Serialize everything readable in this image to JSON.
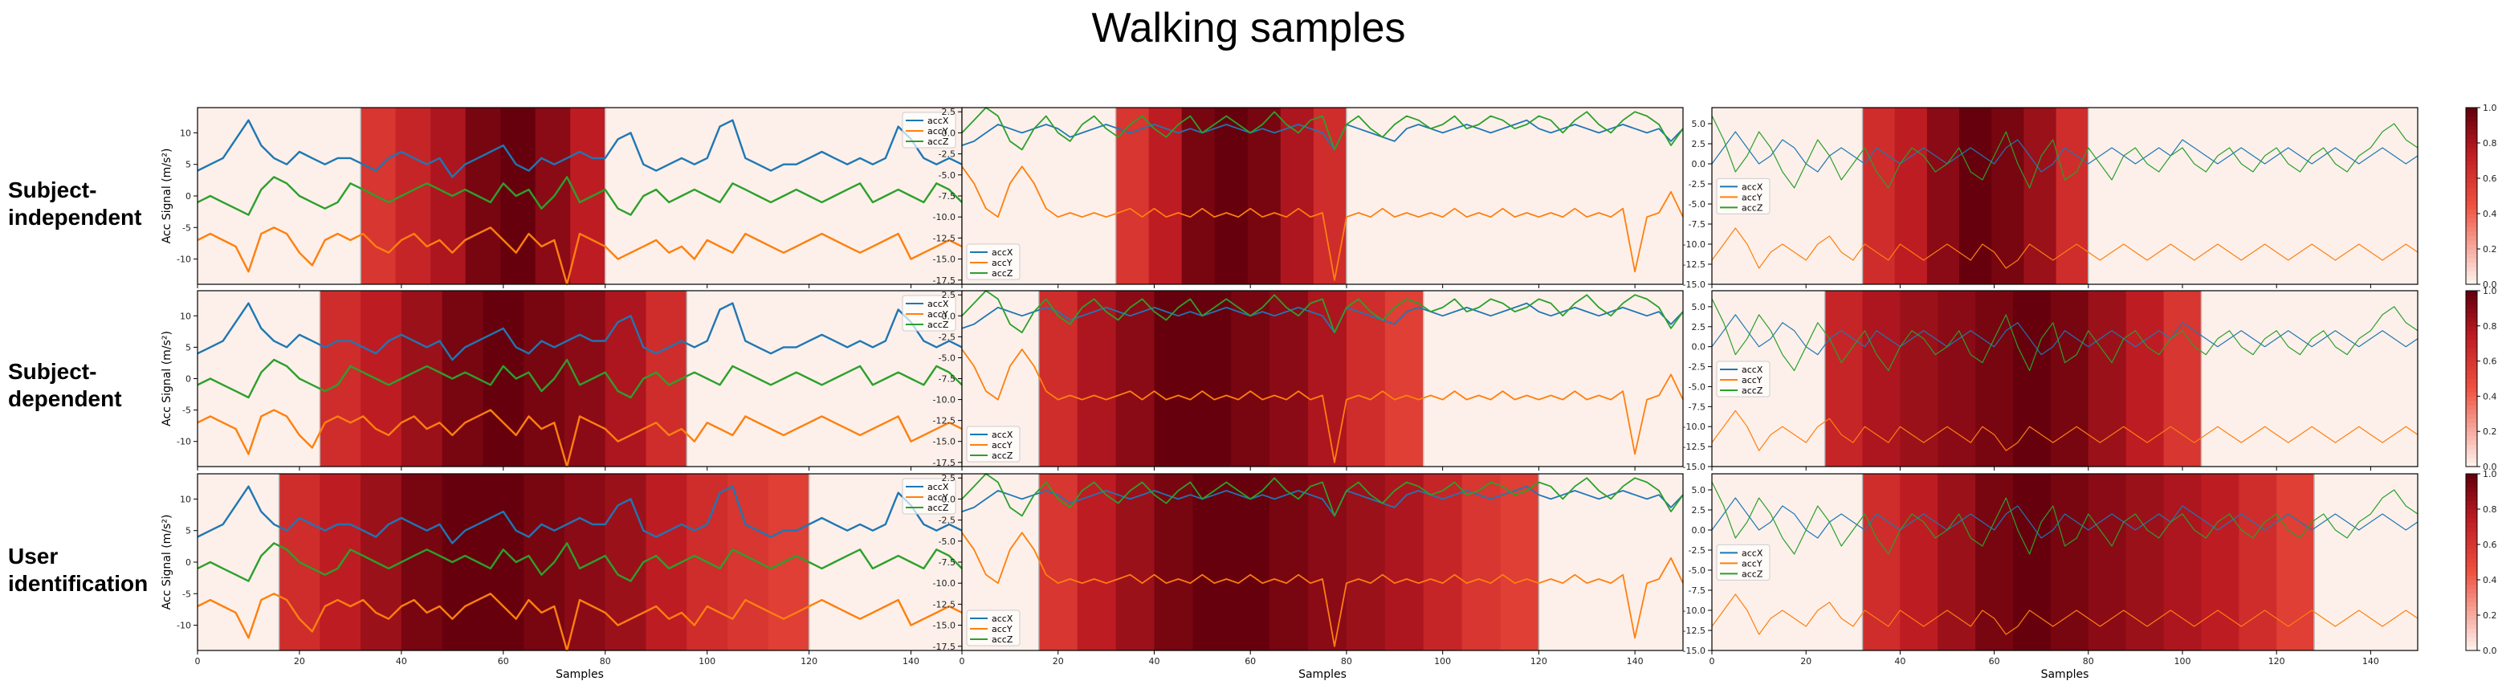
{
  "figure": {
    "title": "Walking samples",
    "row_labels": [
      [
        "Subject-",
        "independent"
      ],
      [
        "Subject-",
        "dependent"
      ],
      [
        "User",
        "identification"
      ]
    ],
    "xlabel": "Samples",
    "ylabel": "Acc Signal (m/s²)",
    "colormap": "Reds",
    "colorbar_ticks": [
      "0.0",
      "0.2",
      "0.4",
      "0.6",
      "0.8",
      "1.0"
    ],
    "series_colors": {
      "accX": "#1f77b4",
      "accY": "#ff7f0e",
      "accZ": "#2ca02c"
    }
  },
  "chart_data": [
    {
      "type": "line",
      "row": 0,
      "col": 0,
      "series": [
        "accX",
        "accY",
        "accZ"
      ],
      "xlim": [
        0,
        150
      ],
      "ylim": [
        -14,
        14
      ],
      "yticks": [
        -10,
        -5,
        0,
        5,
        10
      ],
      "xticks": [
        0,
        20,
        40,
        60,
        80,
        100,
        120,
        140
      ],
      "highlight_x": [
        32,
        80
      ],
      "highlight_weights": [
        0.6,
        0.7,
        0.8,
        0.95,
        1.0,
        0.9,
        0.75
      ],
      "legend_loc": "top-right"
    },
    {
      "type": "line",
      "row": 0,
      "col": 1,
      "series": [
        "accX",
        "accY",
        "accZ"
      ],
      "xlim": [
        0,
        150
      ],
      "ylim": [
        -18,
        3
      ],
      "yticks": [
        -17.5,
        -15.0,
        -12.5,
        -10.0,
        -7.5,
        -5.0,
        -2.5,
        0.0,
        2.5
      ],
      "xticks": [
        0,
        20,
        40,
        60,
        80,
        100,
        120,
        140
      ],
      "highlight_x": [
        32,
        80
      ],
      "highlight_weights": [
        0.6,
        0.75,
        0.95,
        1.0,
        0.95,
        0.8,
        0.65
      ],
      "legend_loc": "bottom-left"
    },
    {
      "type": "line",
      "row": 0,
      "col": 2,
      "series": [
        "accX",
        "accY",
        "accZ"
      ],
      "xlim": [
        0,
        150
      ],
      "ylim": [
        -15,
        7
      ],
      "yticks": [
        -15.0,
        -12.5,
        -10.0,
        -7.5,
        -5.0,
        -2.5,
        0.0,
        2.5,
        5.0
      ],
      "xticks": [
        0,
        20,
        40,
        60,
        80,
        100,
        120,
        140
      ],
      "highlight_x": [
        32,
        80
      ],
      "highlight_weights": [
        0.65,
        0.75,
        0.9,
        1.0,
        0.95,
        0.85,
        0.65
      ],
      "legend_loc": "center-left"
    },
    {
      "type": "line",
      "row": 1,
      "col": 0,
      "series": [
        "accX",
        "accY",
        "accZ"
      ],
      "xlim": [
        0,
        150
      ],
      "ylim": [
        -14,
        14
      ],
      "yticks": [
        -10,
        -5,
        0,
        5,
        10
      ],
      "xticks": [
        0,
        20,
        40,
        60,
        80,
        100,
        120,
        140
      ],
      "highlight_x": [
        24,
        96
      ],
      "highlight_weights": [
        0.65,
        0.75,
        0.85,
        0.95,
        1.0,
        0.95,
        0.9,
        0.8,
        0.65
      ],
      "legend_loc": "top-right"
    },
    {
      "type": "line",
      "row": 1,
      "col": 1,
      "series": [
        "accX",
        "accY",
        "accZ"
      ],
      "xlim": [
        0,
        150
      ],
      "ylim": [
        -18,
        3
      ],
      "yticks": [
        -17.5,
        -15.0,
        -12.5,
        -10.0,
        -7.5,
        -5.0,
        -2.5,
        0.0,
        2.5
      ],
      "xticks": [
        0,
        20,
        40,
        60,
        80,
        100,
        120,
        140
      ],
      "highlight_x": [
        16,
        96
      ],
      "highlight_weights": [
        0.65,
        0.8,
        0.9,
        1.0,
        1.0,
        0.95,
        0.9,
        0.8,
        0.65,
        0.55
      ],
      "legend_loc": "bottom-left"
    },
    {
      "type": "line",
      "row": 1,
      "col": 2,
      "series": [
        "accX",
        "accY",
        "accZ"
      ],
      "xlim": [
        0,
        150
      ],
      "ylim": [
        -15,
        7
      ],
      "yticks": [
        -15.0,
        -12.5,
        -10.0,
        -7.5,
        -5.0,
        -2.5,
        0.0,
        2.5,
        5.0
      ],
      "xticks": [
        0,
        20,
        40,
        60,
        80,
        100,
        120,
        140
      ],
      "highlight_x": [
        24,
        104
      ],
      "highlight_weights": [
        0.7,
        0.8,
        0.85,
        0.9,
        0.95,
        1.0,
        0.95,
        0.85,
        0.75,
        0.6
      ],
      "legend_loc": "center-left"
    },
    {
      "type": "line",
      "row": 2,
      "col": 0,
      "series": [
        "accX",
        "accY",
        "accZ"
      ],
      "xlim": [
        0,
        150
      ],
      "ylim": [
        -14,
        14
      ],
      "yticks": [
        -10,
        -5,
        0,
        5,
        10
      ],
      "xticks": [
        0,
        20,
        40,
        60,
        80,
        100,
        120,
        140
      ],
      "highlight_x": [
        16,
        120
      ],
      "highlight_weights": [
        0.65,
        0.75,
        0.85,
        0.95,
        1.0,
        1.0,
        0.95,
        0.9,
        0.85,
        0.75,
        0.65,
        0.6,
        0.55
      ],
      "legend_loc": "top-right"
    },
    {
      "type": "line",
      "row": 2,
      "col": 1,
      "series": [
        "accX",
        "accY",
        "accZ"
      ],
      "xlim": [
        0,
        150
      ],
      "ylim": [
        -18,
        3
      ],
      "yticks": [
        -17.5,
        -15.0,
        -12.5,
        -10.0,
        -7.5,
        -5.0,
        -2.5,
        0.0,
        2.5
      ],
      "xticks": [
        0,
        20,
        40,
        60,
        80,
        100,
        120,
        140
      ],
      "highlight_x": [
        16,
        120
      ],
      "highlight_weights": [
        0.6,
        0.75,
        0.85,
        0.95,
        1.0,
        1.0,
        0.95,
        0.9,
        0.85,
        0.8,
        0.7,
        0.6,
        0.55
      ],
      "legend_loc": "bottom-left"
    },
    {
      "type": "line",
      "row": 2,
      "col": 2,
      "series": [
        "accX",
        "accY",
        "accZ"
      ],
      "xlim": [
        0,
        150
      ],
      "ylim": [
        -15,
        7
      ],
      "yticks": [
        -15.0,
        -12.5,
        -10.0,
        -7.5,
        -5.0,
        -2.5,
        0.0,
        2.5,
        5.0
      ],
      "xticks": [
        0,
        20,
        40,
        60,
        80,
        100,
        120,
        140
      ],
      "highlight_x": [
        32,
        128
      ],
      "highlight_weights": [
        0.65,
        0.75,
        0.85,
        0.95,
        1.0,
        0.95,
        0.9,
        0.85,
        0.8,
        0.75,
        0.65,
        0.55
      ],
      "legend_loc": "center-left"
    }
  ],
  "signals": {
    "left": {
      "accX": [
        4,
        5,
        6,
        9,
        12,
        8,
        6,
        5,
        7,
        6,
        5,
        6,
        6,
        5,
        4,
        6,
        7,
        6,
        5,
        6,
        3,
        5,
        6,
        7,
        8,
        5,
        4,
        6,
        5,
        6,
        7,
        6,
        6,
        9,
        10,
        5,
        4,
        5,
        6,
        5,
        6,
        11,
        12,
        6,
        5,
        4,
        5,
        5,
        6,
        7,
        6,
        5,
        6,
        5,
        6,
        11,
        9,
        6,
        5,
        6,
        5
      ],
      "accY": [
        -7,
        -6,
        -7,
        -8,
        -12,
        -6,
        -5,
        -6,
        -9,
        -11,
        -7,
        -6,
        -7,
        -6,
        -8,
        -9,
        -7,
        -6,
        -8,
        -7,
        -9,
        -7,
        -6,
        -5,
        -7,
        -9,
        -6,
        -8,
        -7,
        -14,
        -6,
        -7,
        -8,
        -10,
        -9,
        -8,
        -7,
        -9,
        -8,
        -10,
        -7,
        -8,
        -9,
        -6,
        -7,
        -8,
        -9,
        -8,
        -7,
        -6,
        -7,
        -8,
        -9,
        -8,
        -7,
        -6,
        -10,
        -9,
        -8,
        -7,
        -8
      ],
      "accZ": [
        -1,
        0,
        -1,
        -2,
        -3,
        1,
        3,
        2,
        0,
        -1,
        -2,
        -1,
        2,
        1,
        0,
        -1,
        0,
        1,
        2,
        1,
        0,
        1,
        0,
        -1,
        2,
        0,
        1,
        -2,
        0,
        3,
        -1,
        0,
        1,
        -2,
        -3,
        0,
        1,
        -1,
        0,
        1,
        0,
        -1,
        2,
        1,
        0,
        -1,
        0,
        1,
        0,
        -1,
        0,
        1,
        2,
        -1,
        0,
        1,
        0,
        -1,
        2,
        1,
        -1
      ]
    },
    "middle": {
      "accX": [
        -1.5,
        -1.0,
        0.0,
        1.0,
        0.5,
        0.0,
        0.5,
        1.0,
        0.5,
        -0.5,
        0.0,
        0.5,
        1.0,
        0.5,
        0.0,
        0.5,
        1.0,
        0.5,
        0.0,
        0.5,
        0.0,
        0.5,
        1.0,
        0.5,
        0.0,
        0.5,
        0.0,
        0.5,
        1.0,
        0.5,
        0.0,
        -2.0,
        1.0,
        0.5,
        0.0,
        -0.5,
        -1.0,
        0.5,
        1.0,
        0.5,
        0.0,
        0.5,
        1.0,
        0.5,
        0.0,
        0.5,
        1.0,
        1.5,
        0.5,
        0.0,
        0.5,
        1.0,
        0.5,
        0.0,
        0.5,
        1.0,
        0.5,
        0.0,
        0.5,
        -1.0,
        0.5
      ],
      "accY": [
        -4.0,
        -6.0,
        -9.0,
        -10.0,
        -6.0,
        -4.0,
        -6.0,
        -9.0,
        -10.0,
        -9.5,
        -10.0,
        -9.5,
        -10.0,
        -9.5,
        -9.0,
        -10.0,
        -9.0,
        -10.0,
        -9.5,
        -10.0,
        -9.0,
        -10.0,
        -9.5,
        -10.0,
        -9.0,
        -10.0,
        -9.5,
        -10.0,
        -9.0,
        -10.0,
        -9.5,
        -17.5,
        -10.0,
        -9.5,
        -10.0,
        -9.0,
        -10.0,
        -9.5,
        -10.0,
        -9.5,
        -10.0,
        -9.0,
        -10.0,
        -9.5,
        -10.0,
        -9.0,
        -10.0,
        -9.5,
        -10.0,
        -9.5,
        -10.0,
        -9.0,
        -10.0,
        -9.5,
        -10.0,
        -9.0,
        -16.5,
        -10.0,
        -9.5,
        -7.0,
        -10.0
      ],
      "accZ": [
        0.0,
        1.5,
        3.0,
        2.0,
        -1.0,
        -2.0,
        0.5,
        2.0,
        0.0,
        -1.0,
        1.0,
        2.0,
        0.5,
        -0.5,
        1.0,
        2.0,
        0.5,
        -0.5,
        1.0,
        2.0,
        0.0,
        1.0,
        2.0,
        1.0,
        0.0,
        1.0,
        2.5,
        1.0,
        0.0,
        1.5,
        2.0,
        -2.0,
        1.0,
        2.0,
        0.5,
        -0.5,
        1.0,
        2.0,
        1.5,
        0.5,
        1.0,
        2.0,
        0.5,
        1.0,
        2.0,
        1.5,
        0.5,
        1.0,
        2.0,
        1.5,
        0.0,
        1.5,
        2.5,
        1.0,
        0.0,
        1.5,
        2.5,
        2.0,
        1.0,
        -1.5,
        0.5
      ]
    },
    "right": {
      "accX": [
        0.0,
        2.0,
        4.0,
        2.0,
        0.0,
        1.0,
        3.0,
        2.0,
        0.0,
        -1.0,
        1.0,
        2.0,
        1.0,
        0.0,
        2.0,
        1.0,
        0.0,
        1.0,
        2.0,
        1.0,
        0.0,
        1.0,
        2.0,
        1.0,
        0.0,
        2.0,
        3.0,
        1.0,
        -1.0,
        0.0,
        2.0,
        1.0,
        0.0,
        1.0,
        2.0,
        1.0,
        0.0,
        1.0,
        2.0,
        1.0,
        3.0,
        2.0,
        1.0,
        0.0,
        1.0,
        2.0,
        1.0,
        0.0,
        1.0,
        2.0,
        1.0,
        0.0,
        1.0,
        2.0,
        1.0,
        0.0,
        1.0,
        2.0,
        1.0,
        0.0,
        1.0
      ],
      "accY": [
        -12.0,
        -10.0,
        -8.0,
        -10.0,
        -13.0,
        -11.0,
        -10.0,
        -11.0,
        -12.0,
        -10.0,
        -9.0,
        -11.0,
        -12.0,
        -10.0,
        -11.0,
        -12.0,
        -10.0,
        -11.0,
        -12.0,
        -11.0,
        -10.0,
        -11.0,
        -12.0,
        -10.0,
        -11.0,
        -13.0,
        -12.0,
        -10.0,
        -11.0,
        -12.0,
        -11.0,
        -10.0,
        -11.0,
        -12.0,
        -11.0,
        -10.0,
        -11.0,
        -12.0,
        -11.0,
        -10.0,
        -11.0,
        -12.0,
        -11.0,
        -10.0,
        -11.0,
        -12.0,
        -11.0,
        -10.0,
        -11.0,
        -12.0,
        -11.0,
        -10.0,
        -11.0,
        -12.0,
        -11.0,
        -10.0,
        -11.0,
        -12.0,
        -11.0,
        -10.0,
        -11.0
      ],
      "accZ": [
        6.0,
        3.0,
        -1.0,
        1.0,
        4.0,
        2.0,
        -1.0,
        -3.0,
        0.0,
        3.0,
        1.0,
        -2.0,
        0.0,
        2.0,
        -1.0,
        -3.0,
        0.0,
        2.0,
        1.0,
        -1.0,
        0.0,
        2.0,
        -1.0,
        -2.0,
        1.0,
        4.0,
        0.0,
        -3.0,
        1.0,
        3.0,
        -2.0,
        -1.0,
        2.0,
        0.0,
        -2.0,
        1.0,
        2.0,
        0.0,
        -1.0,
        1.0,
        2.0,
        0.0,
        -1.0,
        1.0,
        2.0,
        0.0,
        -1.0,
        1.0,
        2.0,
        0.0,
        -1.0,
        1.0,
        2.0,
        0.0,
        -1.0,
        1.0,
        2.0,
        4.0,
        5.0,
        3.0,
        2.0
      ]
    }
  }
}
